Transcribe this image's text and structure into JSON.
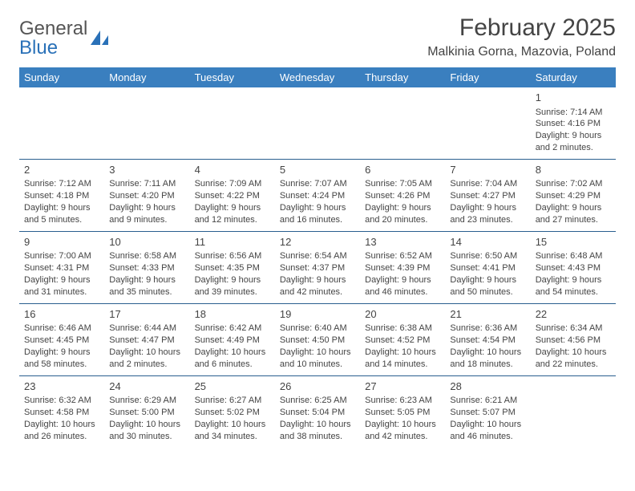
{
  "logo": {
    "word1": "General",
    "word2": "Blue"
  },
  "header": {
    "title": "February 2025",
    "location": "Malkinia Gorna, Mazovia, Poland"
  },
  "colors": {
    "header_bg": "#3a7fbf",
    "header_text": "#ffffff",
    "row_border": "#2a5f8f",
    "logo_accent": "#2a71b8",
    "body_text": "#444444",
    "page_bg": "#ffffff"
  },
  "calendar": {
    "day_names": [
      "Sunday",
      "Monday",
      "Tuesday",
      "Wednesday",
      "Thursday",
      "Friday",
      "Saturday"
    ],
    "column_count": 7,
    "weeks": [
      [
        null,
        null,
        null,
        null,
        null,
        null,
        {
          "day": "1",
          "sunrise": "Sunrise: 7:14 AM",
          "sunset": "Sunset: 4:16 PM",
          "daylight": "Daylight: 9 hours and 2 minutes."
        }
      ],
      [
        {
          "day": "2",
          "sunrise": "Sunrise: 7:12 AM",
          "sunset": "Sunset: 4:18 PM",
          "daylight": "Daylight: 9 hours and 5 minutes."
        },
        {
          "day": "3",
          "sunrise": "Sunrise: 7:11 AM",
          "sunset": "Sunset: 4:20 PM",
          "daylight": "Daylight: 9 hours and 9 minutes."
        },
        {
          "day": "4",
          "sunrise": "Sunrise: 7:09 AM",
          "sunset": "Sunset: 4:22 PM",
          "daylight": "Daylight: 9 hours and 12 minutes."
        },
        {
          "day": "5",
          "sunrise": "Sunrise: 7:07 AM",
          "sunset": "Sunset: 4:24 PM",
          "daylight": "Daylight: 9 hours and 16 minutes."
        },
        {
          "day": "6",
          "sunrise": "Sunrise: 7:05 AM",
          "sunset": "Sunset: 4:26 PM",
          "daylight": "Daylight: 9 hours and 20 minutes."
        },
        {
          "day": "7",
          "sunrise": "Sunrise: 7:04 AM",
          "sunset": "Sunset: 4:27 PM",
          "daylight": "Daylight: 9 hours and 23 minutes."
        },
        {
          "day": "8",
          "sunrise": "Sunrise: 7:02 AM",
          "sunset": "Sunset: 4:29 PM",
          "daylight": "Daylight: 9 hours and 27 minutes."
        }
      ],
      [
        {
          "day": "9",
          "sunrise": "Sunrise: 7:00 AM",
          "sunset": "Sunset: 4:31 PM",
          "daylight": "Daylight: 9 hours and 31 minutes."
        },
        {
          "day": "10",
          "sunrise": "Sunrise: 6:58 AM",
          "sunset": "Sunset: 4:33 PM",
          "daylight": "Daylight: 9 hours and 35 minutes."
        },
        {
          "day": "11",
          "sunrise": "Sunrise: 6:56 AM",
          "sunset": "Sunset: 4:35 PM",
          "daylight": "Daylight: 9 hours and 39 minutes."
        },
        {
          "day": "12",
          "sunrise": "Sunrise: 6:54 AM",
          "sunset": "Sunset: 4:37 PM",
          "daylight": "Daylight: 9 hours and 42 minutes."
        },
        {
          "day": "13",
          "sunrise": "Sunrise: 6:52 AM",
          "sunset": "Sunset: 4:39 PM",
          "daylight": "Daylight: 9 hours and 46 minutes."
        },
        {
          "day": "14",
          "sunrise": "Sunrise: 6:50 AM",
          "sunset": "Sunset: 4:41 PM",
          "daylight": "Daylight: 9 hours and 50 minutes."
        },
        {
          "day": "15",
          "sunrise": "Sunrise: 6:48 AM",
          "sunset": "Sunset: 4:43 PM",
          "daylight": "Daylight: 9 hours and 54 minutes."
        }
      ],
      [
        {
          "day": "16",
          "sunrise": "Sunrise: 6:46 AM",
          "sunset": "Sunset: 4:45 PM",
          "daylight": "Daylight: 9 hours and 58 minutes."
        },
        {
          "day": "17",
          "sunrise": "Sunrise: 6:44 AM",
          "sunset": "Sunset: 4:47 PM",
          "daylight": "Daylight: 10 hours and 2 minutes."
        },
        {
          "day": "18",
          "sunrise": "Sunrise: 6:42 AM",
          "sunset": "Sunset: 4:49 PM",
          "daylight": "Daylight: 10 hours and 6 minutes."
        },
        {
          "day": "19",
          "sunrise": "Sunrise: 6:40 AM",
          "sunset": "Sunset: 4:50 PM",
          "daylight": "Daylight: 10 hours and 10 minutes."
        },
        {
          "day": "20",
          "sunrise": "Sunrise: 6:38 AM",
          "sunset": "Sunset: 4:52 PM",
          "daylight": "Daylight: 10 hours and 14 minutes."
        },
        {
          "day": "21",
          "sunrise": "Sunrise: 6:36 AM",
          "sunset": "Sunset: 4:54 PM",
          "daylight": "Daylight: 10 hours and 18 minutes."
        },
        {
          "day": "22",
          "sunrise": "Sunrise: 6:34 AM",
          "sunset": "Sunset: 4:56 PM",
          "daylight": "Daylight: 10 hours and 22 minutes."
        }
      ],
      [
        {
          "day": "23",
          "sunrise": "Sunrise: 6:32 AM",
          "sunset": "Sunset: 4:58 PM",
          "daylight": "Daylight: 10 hours and 26 minutes."
        },
        {
          "day": "24",
          "sunrise": "Sunrise: 6:29 AM",
          "sunset": "Sunset: 5:00 PM",
          "daylight": "Daylight: 10 hours and 30 minutes."
        },
        {
          "day": "25",
          "sunrise": "Sunrise: 6:27 AM",
          "sunset": "Sunset: 5:02 PM",
          "daylight": "Daylight: 10 hours and 34 minutes."
        },
        {
          "day": "26",
          "sunrise": "Sunrise: 6:25 AM",
          "sunset": "Sunset: 5:04 PM",
          "daylight": "Daylight: 10 hours and 38 minutes."
        },
        {
          "day": "27",
          "sunrise": "Sunrise: 6:23 AM",
          "sunset": "Sunset: 5:05 PM",
          "daylight": "Daylight: 10 hours and 42 minutes."
        },
        {
          "day": "28",
          "sunrise": "Sunrise: 6:21 AM",
          "sunset": "Sunset: 5:07 PM",
          "daylight": "Daylight: 10 hours and 46 minutes."
        },
        null
      ]
    ]
  }
}
